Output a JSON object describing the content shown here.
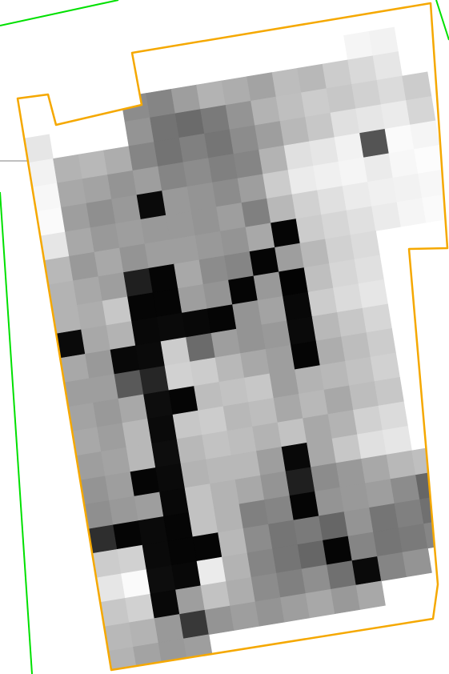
{
  "map": {
    "background": "#ffffff",
    "boundary_color": "#00e000",
    "parcel_outline_color": "#f5a800",
    "leader_line_color": "#808080",
    "raster": {
      "rows": 25,
      "cols": 16,
      "grayscale_values": [
        [
          null,
          null,
          null,
          null,
          null,
          null,
          null,
          null,
          null,
          null,
          null,
          null,
          null,
          0.96,
          0.95,
          null
        ],
        [
          null,
          null,
          null,
          null,
          0.55,
          0.52,
          0.62,
          0.7,
          0.68,
          0.64,
          0.74,
          0.72,
          0.8,
          0.85,
          0.9,
          null
        ],
        [
          0.9,
          null,
          null,
          null,
          0.58,
          0.45,
          0.42,
          0.48,
          0.58,
          0.7,
          0.75,
          0.8,
          0.78,
          0.82,
          0.86,
          0.8
        ],
        [
          0.95,
          0.7,
          0.72,
          0.68,
          0.52,
          0.45,
          0.5,
          0.46,
          0.55,
          0.62,
          0.72,
          0.78,
          0.88,
          0.9,
          0.92,
          0.84
        ],
        [
          0.97,
          0.66,
          0.64,
          0.58,
          0.62,
          0.52,
          0.55,
          0.5,
          0.52,
          0.7,
          0.88,
          0.9,
          0.95,
          0.33,
          0.98,
          0.96
        ],
        [
          0.98,
          0.62,
          0.56,
          0.6,
          0.04,
          0.6,
          0.58,
          0.55,
          0.62,
          0.8,
          0.92,
          0.94,
          0.96,
          0.92,
          0.97,
          0.99
        ],
        [
          0.9,
          0.66,
          0.6,
          0.62,
          0.6,
          0.6,
          0.58,
          0.62,
          0.5,
          0.72,
          0.82,
          0.88,
          0.92,
          0.94,
          0.95,
          0.97
        ],
        [
          0.72,
          0.6,
          0.66,
          0.58,
          0.62,
          0.62,
          0.6,
          0.58,
          0.66,
          0.02,
          0.8,
          0.84,
          0.88,
          0.92,
          0.96,
          0.98
        ],
        [
          0.7,
          0.66,
          0.62,
          0.12,
          0.02,
          0.66,
          0.55,
          0.52,
          0.02,
          0.62,
          0.72,
          0.82,
          0.86,
          null,
          null,
          null
        ],
        [
          0.7,
          0.68,
          0.78,
          0.02,
          0.02,
          0.62,
          0.58,
          0.02,
          0.6,
          0.01,
          0.75,
          0.84,
          0.88,
          null,
          null,
          null
        ],
        [
          0.04,
          0.66,
          0.7,
          0.03,
          0.04,
          0.03,
          0.02,
          0.58,
          0.64,
          0.03,
          0.8,
          0.86,
          0.9,
          null,
          null,
          null
        ],
        [
          0.66,
          0.6,
          0.03,
          0.04,
          0.8,
          0.42,
          0.62,
          0.58,
          0.6,
          0.04,
          0.72,
          0.78,
          0.84,
          null,
          null,
          null
        ],
        [
          0.62,
          0.62,
          0.35,
          0.15,
          0.82,
          0.8,
          0.72,
          0.66,
          0.62,
          0.02,
          0.68,
          0.74,
          0.8,
          null,
          null,
          null
        ],
        [
          0.64,
          0.6,
          0.66,
          0.05,
          0.02,
          0.74,
          0.76,
          0.78,
          0.62,
          0.7,
          0.72,
          0.76,
          0.82,
          null,
          null,
          null
        ],
        [
          0.66,
          0.62,
          0.72,
          0.04,
          0.78,
          0.8,
          0.72,
          0.74,
          0.66,
          0.72,
          0.66,
          0.74,
          0.78,
          null,
          null,
          null
        ],
        [
          0.62,
          0.64,
          0.72,
          0.05,
          0.72,
          0.76,
          0.74,
          0.7,
          0.76,
          0.66,
          0.7,
          0.82,
          0.86,
          null,
          null,
          null
        ],
        [
          0.58,
          0.62,
          0.02,
          0.04,
          0.7,
          0.72,
          0.72,
          0.62,
          0.03,
          0.66,
          0.78,
          0.88,
          0.9,
          null,
          null,
          null
        ],
        [
          0.56,
          0.6,
          0.62,
          0.03,
          0.76,
          0.7,
          0.66,
          0.58,
          0.12,
          0.55,
          0.6,
          0.66,
          0.72,
          0.75,
          null,
          null
        ],
        [
          0.18,
          0.02,
          0.04,
          0.02,
          0.76,
          0.7,
          0.5,
          0.52,
          0.02,
          0.58,
          0.6,
          0.62,
          0.55,
          0.4,
          null,
          null
        ],
        [
          0.8,
          0.82,
          0.04,
          0.02,
          0.02,
          0.72,
          0.55,
          0.46,
          0.48,
          0.4,
          0.58,
          0.46,
          0.5,
          0.44,
          null,
          null
        ],
        [
          0.9,
          0.98,
          0.05,
          0.03,
          0.92,
          0.7,
          0.52,
          0.46,
          0.4,
          0.02,
          0.52,
          0.46,
          0.48,
          0.52,
          null,
          null
        ],
        [
          0.78,
          0.82,
          0.03,
          0.62,
          0.76,
          0.68,
          0.55,
          0.5,
          0.56,
          0.44,
          0.04,
          0.52,
          0.58,
          null,
          null,
          null
        ],
        [
          0.72,
          0.7,
          0.6,
          0.22,
          0.58,
          0.62,
          0.58,
          0.62,
          0.66,
          0.6,
          0.66,
          null,
          null,
          null,
          null,
          null
        ],
        [
          0.7,
          0.64,
          0.6,
          0.62,
          null,
          null,
          null,
          null,
          null,
          null,
          null,
          null,
          null,
          null,
          null,
          null
        ],
        [
          null,
          null,
          null,
          null,
          null,
          null,
          null,
          null,
          null,
          null,
          null,
          null,
          null,
          null,
          null,
          null
        ]
      ]
    }
  }
}
